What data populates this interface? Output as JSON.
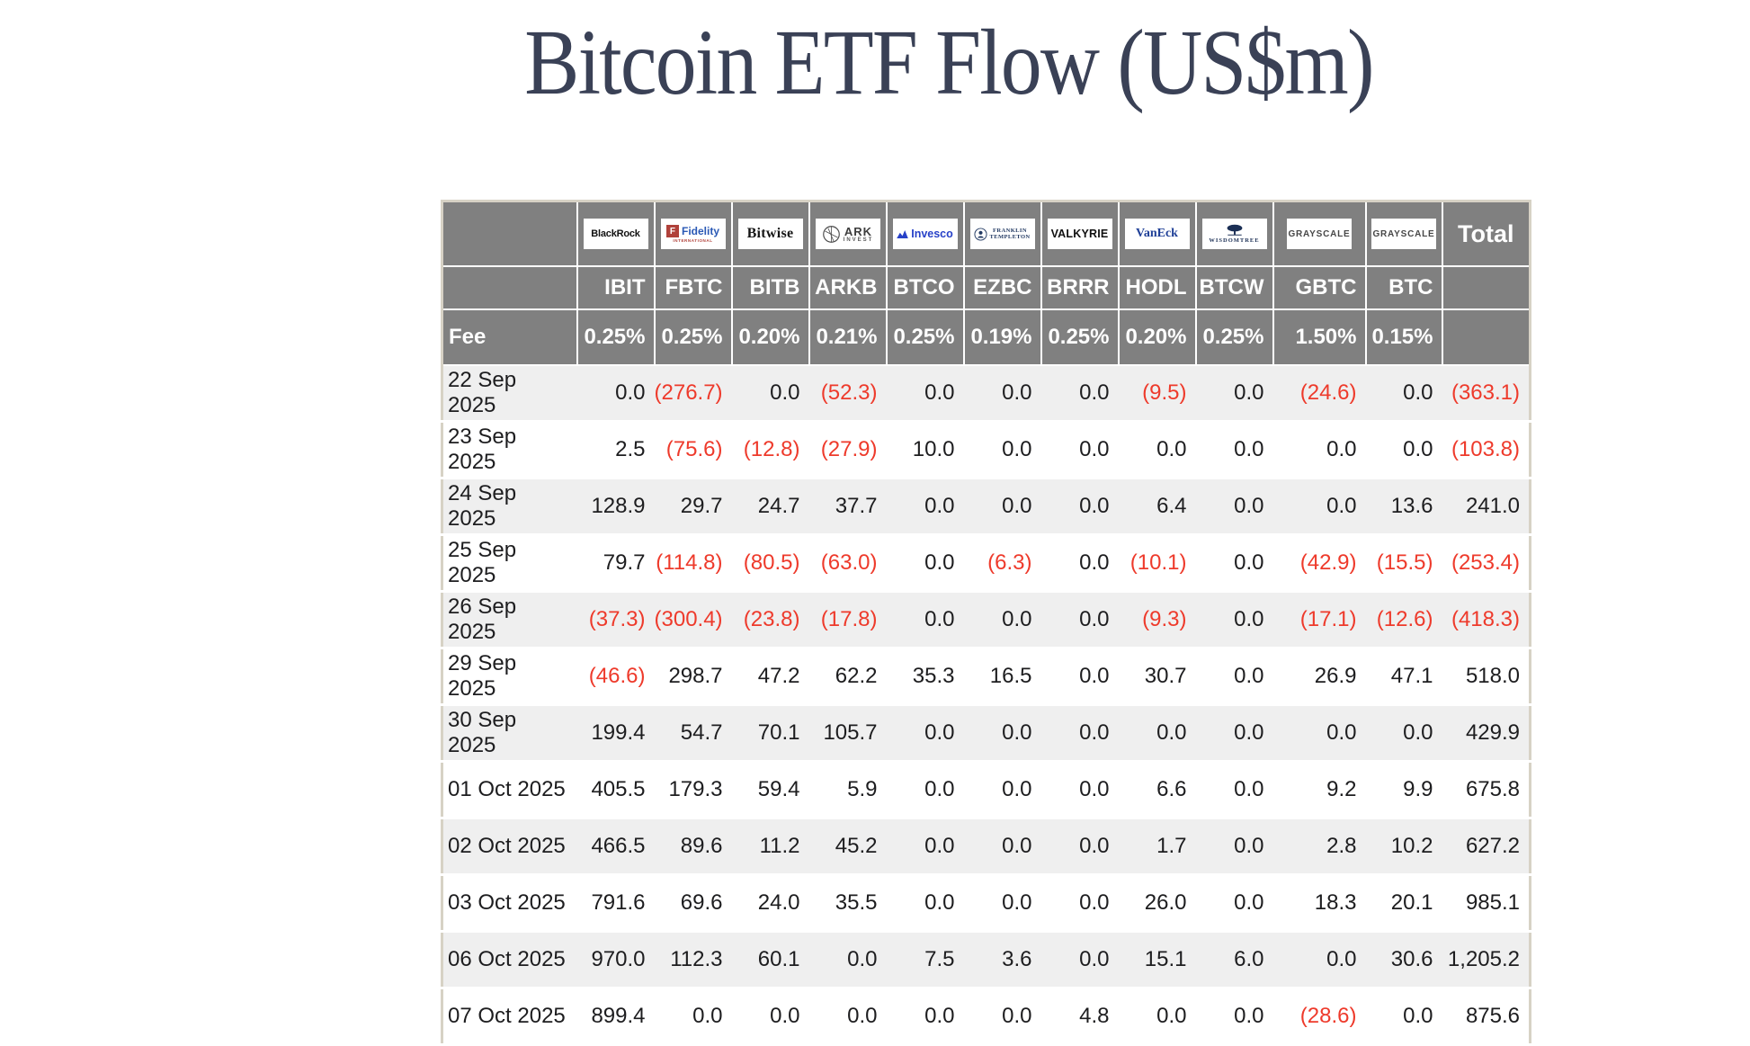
{
  "page": {
    "title": "Bitcoin ETF Flow (US$m)"
  },
  "header": {
    "fee_label": "Fee",
    "total_label": "Total",
    "logos": {
      "blackrock": "BlackRock",
      "fidelity": {
        "icon": "F",
        "name": "Fidelity",
        "sub": "INTERNATIONAL"
      },
      "bitwise": "Bitwise",
      "ark": {
        "line1": "ARK",
        "line2": "INVEST"
      },
      "invesco": "Invesco",
      "franklin": {
        "line1": "FRANKLIN",
        "line2": "TEMPLETON"
      },
      "valkyrie": "VALKYRIE",
      "vaneck": "VanEck",
      "wisdomtree": "WISDOMTREE",
      "grayscale_gbtc": "GRAYSCALE",
      "grayscale_btc": "GRAYSCALE"
    }
  },
  "chart_data": {
    "type": "table",
    "title": "Bitcoin ETF Flow (US$m)",
    "providers": [
      "BlackRock",
      "Fidelity",
      "Bitwise",
      "ARK Invest",
      "Invesco",
      "Franklin Templeton",
      "Valkyrie",
      "VanEck",
      "WisdomTree",
      "Grayscale",
      "Grayscale"
    ],
    "tickers": [
      "IBIT",
      "FBTC",
      "BITB",
      "ARKB",
      "BTCO",
      "EZBC",
      "BRRR",
      "HODL",
      "BTCW",
      "GBTC",
      "BTC"
    ],
    "fees": [
      "0.25%",
      "0.25%",
      "0.20%",
      "0.21%",
      "0.25%",
      "0.19%",
      "0.25%",
      "0.20%",
      "0.25%",
      "1.50%",
      "0.15%"
    ],
    "total_column": "Total",
    "rows": [
      {
        "date": "22 Sep 2025",
        "values": [
          "0.0",
          "(276.7)",
          "0.0",
          "(52.3)",
          "0.0",
          "0.0",
          "0.0",
          "(9.5)",
          "0.0",
          "(24.6)",
          "0.0"
        ],
        "total": "(363.1)"
      },
      {
        "date": "23 Sep 2025",
        "values": [
          "2.5",
          "(75.6)",
          "(12.8)",
          "(27.9)",
          "10.0",
          "0.0",
          "0.0",
          "0.0",
          "0.0",
          "0.0",
          "0.0"
        ],
        "total": "(103.8)"
      },
      {
        "date": "24 Sep 2025",
        "values": [
          "128.9",
          "29.7",
          "24.7",
          "37.7",
          "0.0",
          "0.0",
          "0.0",
          "6.4",
          "0.0",
          "0.0",
          "13.6"
        ],
        "total": "241.0"
      },
      {
        "date": "25 Sep 2025",
        "values": [
          "79.7",
          "(114.8)",
          "(80.5)",
          "(63.0)",
          "0.0",
          "(6.3)",
          "0.0",
          "(10.1)",
          "0.0",
          "(42.9)",
          "(15.5)"
        ],
        "total": "(253.4)"
      },
      {
        "date": "26 Sep 2025",
        "values": [
          "(37.3)",
          "(300.4)",
          "(23.8)",
          "(17.8)",
          "0.0",
          "0.0",
          "0.0",
          "(9.3)",
          "0.0",
          "(17.1)",
          "(12.6)"
        ],
        "total": "(418.3)"
      },
      {
        "date": "29 Sep 2025",
        "values": [
          "(46.6)",
          "298.7",
          "47.2",
          "62.2",
          "35.3",
          "16.5",
          "0.0",
          "30.7",
          "0.0",
          "26.9",
          "47.1"
        ],
        "total": "518.0"
      },
      {
        "date": "30 Sep 2025",
        "values": [
          "199.4",
          "54.7",
          "70.1",
          "105.7",
          "0.0",
          "0.0",
          "0.0",
          "0.0",
          "0.0",
          "0.0",
          "0.0"
        ],
        "total": "429.9"
      },
      {
        "date": "01 Oct 2025",
        "values": [
          "405.5",
          "179.3",
          "59.4",
          "5.9",
          "0.0",
          "0.0",
          "0.0",
          "6.6",
          "0.0",
          "9.2",
          "9.9"
        ],
        "total": "675.8"
      },
      {
        "date": "02 Oct 2025",
        "values": [
          "466.5",
          "89.6",
          "11.2",
          "45.2",
          "0.0",
          "0.0",
          "0.0",
          "1.7",
          "0.0",
          "2.8",
          "10.2"
        ],
        "total": "627.2"
      },
      {
        "date": "03 Oct 2025",
        "values": [
          "791.6",
          "69.6",
          "24.0",
          "35.5",
          "0.0",
          "0.0",
          "0.0",
          "26.0",
          "0.0",
          "18.3",
          "20.1"
        ],
        "total": "985.1"
      },
      {
        "date": "06 Oct 2025",
        "values": [
          "970.0",
          "112.3",
          "60.1",
          "0.0",
          "7.5",
          "3.6",
          "0.0",
          "15.1",
          "6.0",
          "0.0",
          "30.6"
        ],
        "total": "1,205.2"
      },
      {
        "date": "07 Oct 2025",
        "values": [
          "899.4",
          "0.0",
          "0.0",
          "0.0",
          "0.0",
          "0.0",
          "4.8",
          "0.0",
          "0.0",
          "(28.6)",
          "0.0"
        ],
        "total": "875.6"
      }
    ]
  },
  "colors": {
    "header_bg": "#808080",
    "row_alt": "#efefef",
    "negative": "#ee3a2b",
    "title": "#3a4156",
    "table_border": "#d7d2c5"
  }
}
